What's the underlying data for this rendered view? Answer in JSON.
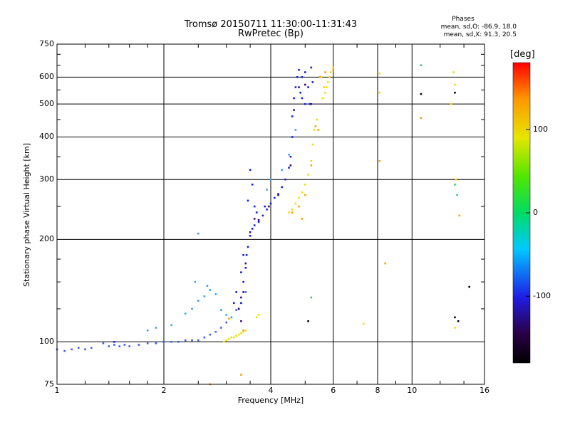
{
  "chart_data": {
    "type": "scatter",
    "title": "Tromsø 20150711 11:30:00-11:31:43",
    "subtitle": "RwPretec (Bp)",
    "xlabel": "Frequency [MHz]",
    "ylabel": "Stationary phase Virtual Height [km]",
    "xscale": "log",
    "yscale": "log",
    "xlim": [
      1,
      16
    ],
    "ylim": [
      75,
      750
    ],
    "xticks": [
      1,
      2,
      4,
      6,
      8,
      10,
      16
    ],
    "xtick_labels": [
      "1",
      "2",
      "4",
      "6",
      "8",
      "10",
      "16"
    ],
    "yticks": [
      75,
      100,
      200,
      300,
      400,
      500,
      600,
      750
    ],
    "ytick_labels": [
      "75",
      "100",
      "200",
      "300",
      "400",
      "500",
      "600",
      "750"
    ],
    "grid": true,
    "phase_info": {
      "heading": "Phases",
      "line_o": "mean, sd,O: -86.9, 18.0",
      "line_x": "mean, sd,X: 91.3, 20.5"
    },
    "colorbar": {
      "label": "[deg]",
      "range": [
        -180,
        180
      ],
      "ticks": [
        100,
        0,
        -100
      ],
      "tick_labels": [
        "100",
        "0",
        "-100"
      ],
      "colors": [
        "#000000",
        "#2a0048",
        "#1e1ee6",
        "#00c8ff",
        "#00dc64",
        "#50e600",
        "#e6e600",
        "#ff9600",
        "#ff0000"
      ]
    },
    "series": [
      {
        "phase": -115,
        "color": "#3860f0",
        "points": [
          [
            1.0,
            95
          ],
          [
            1.05,
            94
          ],
          [
            1.1,
            95
          ],
          [
            1.15,
            96
          ],
          [
            1.2,
            95
          ],
          [
            1.25,
            96
          ],
          [
            1.35,
            99
          ],
          [
            1.4,
            97
          ],
          [
            1.45,
            98
          ],
          [
            1.5,
            97
          ],
          [
            1.55,
            98
          ],
          [
            1.6,
            97
          ],
          [
            1.7,
            98
          ],
          [
            1.8,
            99
          ],
          [
            1.9,
            99
          ],
          [
            2.0,
            100
          ],
          [
            2.1,
            100
          ],
          [
            2.2,
            100
          ],
          [
            2.3,
            101
          ],
          [
            2.4,
            101
          ],
          [
            2.5,
            101
          ],
          [
            2.6,
            103
          ],
          [
            2.7,
            105
          ],
          [
            2.8,
            107
          ],
          [
            2.9,
            110
          ],
          [
            3.0,
            114
          ],
          [
            3.1,
            118
          ],
          [
            3.2,
            124
          ],
          [
            3.3,
            130
          ],
          [
            3.4,
            140
          ]
        ]
      },
      {
        "phase": -95,
        "color": "#3ca0f0",
        "points": [
          [
            2.3,
            121
          ],
          [
            2.4,
            125
          ],
          [
            2.5,
            132
          ],
          [
            2.6,
            136
          ],
          [
            2.7,
            142
          ],
          [
            2.8,
            138
          ],
          [
            2.9,
            124
          ],
          [
            3.0,
            120
          ],
          [
            3.1,
            118
          ],
          [
            2.45,
            150
          ],
          [
            2.65,
            146
          ],
          [
            1.8,
            108
          ],
          [
            1.9,
            110
          ],
          [
            2.1,
            112
          ],
          [
            2.5,
            208
          ],
          [
            3.9,
            280
          ],
          [
            4.0,
            300
          ],
          [
            4.3,
            320
          ],
          [
            4.5,
            355
          ],
          [
            4.7,
            420
          ]
        ]
      },
      {
        "phase": -125,
        "color": "#1420dc",
        "points": [
          [
            1.45,
            100
          ],
          [
            3.3,
            130
          ],
          [
            3.35,
            150
          ],
          [
            3.4,
            165
          ],
          [
            3.42,
            180
          ],
          [
            3.45,
            190
          ],
          [
            3.5,
            205
          ],
          [
            3.55,
            215
          ],
          [
            3.6,
            220
          ],
          [
            3.7,
            225
          ],
          [
            3.8,
            235
          ],
          [
            3.9,
            245
          ],
          [
            4.0,
            255
          ],
          [
            4.2,
            272
          ],
          [
            4.3,
            285
          ],
          [
            4.4,
            300
          ],
          [
            4.5,
            325
          ],
          [
            4.55,
            350
          ],
          [
            4.6,
            400
          ],
          [
            4.6,
            460
          ],
          [
            4.65,
            520
          ],
          [
            4.7,
            560
          ],
          [
            4.75,
            600
          ],
          [
            4.8,
            630
          ],
          [
            4.85,
            540
          ],
          [
            4.9,
            600
          ],
          [
            5.0,
            620
          ],
          [
            5.1,
            560
          ],
          [
            5.2,
            640
          ],
          [
            5.25,
            580
          ],
          [
            3.45,
            260
          ],
          [
            3.55,
            290
          ],
          [
            3.5,
            320
          ],
          [
            3.6,
            250
          ],
          [
            3.65,
            240
          ],
          [
            3.35,
            180
          ],
          [
            3.3,
            160
          ],
          [
            3.2,
            140
          ],
          [
            3.25,
            125
          ],
          [
            3.15,
            130
          ],
          [
            5.0,
            500
          ],
          [
            5.15,
            500
          ],
          [
            4.9,
            520
          ],
          [
            3.85,
            250
          ],
          [
            4.1,
            265
          ]
        ]
      },
      {
        "phase": -140,
        "color": "#3a0a8c",
        "points": [
          [
            3.25,
            125
          ],
          [
            3.35,
            140
          ],
          [
            3.4,
            170
          ],
          [
            3.5,
            210
          ],
          [
            3.6,
            230
          ],
          [
            3.7,
            228
          ],
          [
            3.95,
            250
          ],
          [
            4.2,
            270
          ],
          [
            4.55,
            330
          ],
          [
            4.65,
            480
          ],
          [
            4.8,
            560
          ],
          [
            5.0,
            570
          ],
          [
            5.2,
            500
          ],
          [
            3.3,
            115
          ],
          [
            3.3,
            135
          ]
        ]
      },
      {
        "phase": 90,
        "color": "#f0dc00",
        "points": [
          [
            2.95,
            100
          ],
          [
            3.0,
            101
          ],
          [
            3.05,
            102
          ],
          [
            3.1,
            103
          ],
          [
            3.15,
            103
          ],
          [
            3.2,
            104
          ],
          [
            3.25,
            105
          ],
          [
            3.3,
            106
          ],
          [
            3.35,
            107
          ],
          [
            3.4,
            108
          ],
          [
            4.5,
            240
          ],
          [
            4.6,
            245
          ],
          [
            4.7,
            255
          ],
          [
            4.8,
            265
          ],
          [
            4.9,
            275
          ],
          [
            5.0,
            290
          ],
          [
            5.1,
            310
          ],
          [
            5.2,
            340
          ],
          [
            5.25,
            380
          ],
          [
            5.3,
            420
          ],
          [
            5.4,
            450
          ],
          [
            5.6,
            520
          ],
          [
            5.7,
            540
          ],
          [
            5.75,
            560
          ],
          [
            5.8,
            580
          ],
          [
            5.85,
            600
          ],
          [
            5.9,
            620
          ],
          [
            6.0,
            640
          ],
          [
            5.55,
            600
          ],
          [
            5.65,
            560
          ],
          [
            7.3,
            113
          ],
          [
            8.1,
            615
          ],
          [
            8.1,
            540
          ],
          [
            13.2,
            110
          ],
          [
            13.3,
            300
          ],
          [
            13.1,
            620
          ],
          [
            13.2,
            570
          ],
          [
            12.9,
            500
          ],
          [
            3.65,
            118
          ],
          [
            3.7,
            120
          ]
        ]
      },
      {
        "phase": 115,
        "color": "#ffa000",
        "points": [
          [
            2.7,
            75
          ],
          [
            3.3,
            80
          ],
          [
            4.6,
            240
          ],
          [
            4.8,
            250
          ],
          [
            5.0,
            270
          ],
          [
            5.2,
            330
          ],
          [
            5.35,
            430
          ],
          [
            5.45,
            420
          ],
          [
            5.5,
            600
          ],
          [
            5.7,
            620
          ],
          [
            6.0,
            630
          ],
          [
            8.1,
            340
          ],
          [
            8.4,
            170
          ],
          [
            10.6,
            455
          ],
          [
            13.6,
            235
          ],
          [
            3.05,
            117
          ],
          [
            3.35,
            108
          ],
          [
            4.9,
            230
          ]
        ]
      },
      {
        "phase": 20,
        "color": "#2dd278",
        "points": [
          [
            5.2,
            135
          ],
          [
            10.6,
            650
          ],
          [
            13.2,
            290
          ],
          [
            13.4,
            270
          ]
        ]
      },
      {
        "phase": -150,
        "color": "#000028",
        "points": [
          [
            5.1,
            115
          ],
          [
            10.6,
            535
          ],
          [
            13.2,
            540
          ],
          [
            13.2,
            118
          ],
          [
            14.5,
            145
          ],
          [
            13.5,
            115
          ]
        ]
      }
    ]
  }
}
